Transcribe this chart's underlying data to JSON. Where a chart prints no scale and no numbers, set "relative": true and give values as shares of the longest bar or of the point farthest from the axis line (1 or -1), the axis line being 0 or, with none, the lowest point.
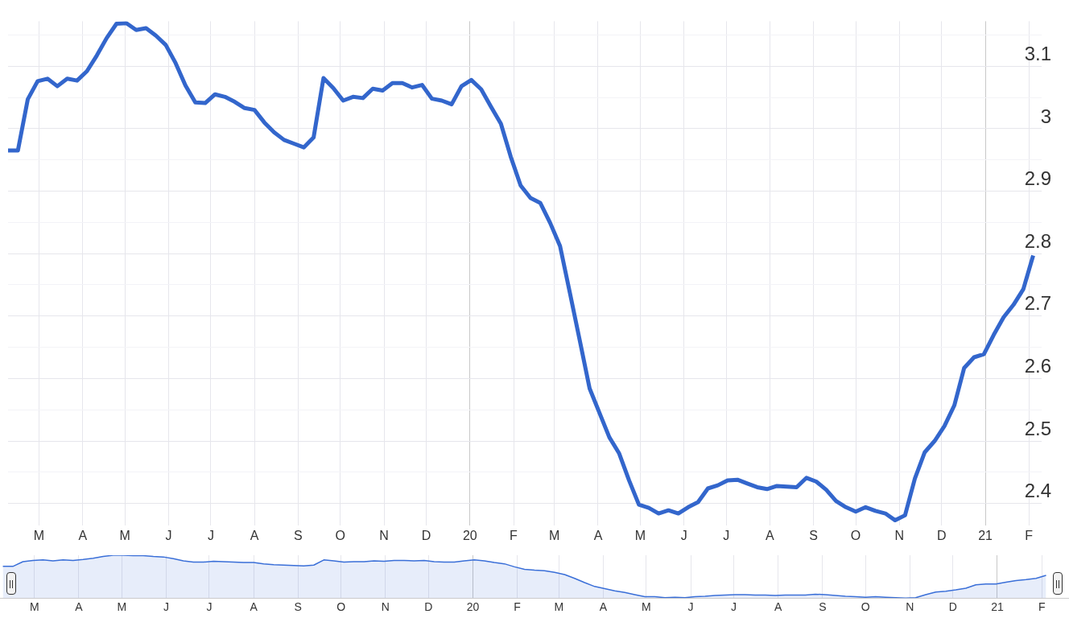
{
  "chart_data": [
    {
      "type": "line",
      "color": "#3366cc",
      "marker": "none",
      "grid": true,
      "x": [
        "2019-02-07",
        "2019-02-14",
        "2019-02-21",
        "2019-02-28",
        "2019-03-07",
        "2019-03-14",
        "2019-03-21",
        "2019-03-28",
        "2019-04-04",
        "2019-04-11",
        "2019-04-18",
        "2019-04-25",
        "2019-05-02",
        "2019-05-09",
        "2019-05-16",
        "2019-05-23",
        "2019-05-30",
        "2019-06-06",
        "2019-06-13",
        "2019-06-20",
        "2019-06-27",
        "2019-07-04",
        "2019-07-11",
        "2019-07-18",
        "2019-07-25",
        "2019-08-01",
        "2019-08-08",
        "2019-08-15",
        "2019-08-22",
        "2019-08-29",
        "2019-09-05",
        "2019-09-12",
        "2019-09-19",
        "2019-09-26",
        "2019-10-03",
        "2019-10-10",
        "2019-10-17",
        "2019-10-24",
        "2019-10-31",
        "2019-11-07",
        "2019-11-14",
        "2019-11-21",
        "2019-11-28",
        "2019-12-05",
        "2019-12-12",
        "2019-12-19",
        "2019-12-26",
        "2020-01-02",
        "2020-01-09",
        "2020-01-16",
        "2020-01-23",
        "2020-01-30",
        "2020-02-06",
        "2020-02-13",
        "2020-02-20",
        "2020-02-27",
        "2020-03-05",
        "2020-03-12",
        "2020-03-19",
        "2020-03-26",
        "2020-04-02",
        "2020-04-09",
        "2020-04-16",
        "2020-04-23",
        "2020-04-30",
        "2020-05-07",
        "2020-05-14",
        "2020-05-21",
        "2020-05-28",
        "2020-06-04",
        "2020-06-11",
        "2020-06-18",
        "2020-06-25",
        "2020-07-02",
        "2020-07-09",
        "2020-07-16",
        "2020-07-23",
        "2020-07-30",
        "2020-08-06",
        "2020-08-13",
        "2020-08-20",
        "2020-08-27",
        "2020-09-03",
        "2020-09-10",
        "2020-09-17",
        "2020-09-24",
        "2020-10-01",
        "2020-10-08",
        "2020-10-15",
        "2020-10-22",
        "2020-10-29",
        "2020-11-05",
        "2020-11-12",
        "2020-11-19",
        "2020-11-26",
        "2020-12-03",
        "2020-12-10",
        "2020-12-17",
        "2020-12-24",
        "2020-12-31",
        "2021-01-07",
        "2021-01-14",
        "2021-01-21",
        "2021-01-28",
        "2021-02-04"
      ],
      "values": [
        2.965,
        2.965,
        3.047,
        3.076,
        3.08,
        3.068,
        3.08,
        3.077,
        3.092,
        3.117,
        3.145,
        3.168,
        3.169,
        3.158,
        3.161,
        3.149,
        3.134,
        3.105,
        3.069,
        3.042,
        3.041,
        3.055,
        3.051,
        3.043,
        3.033,
        3.03,
        3.01,
        2.994,
        2.982,
        2.976,
        2.97,
        2.986,
        3.081,
        3.065,
        3.045,
        3.051,
        3.049,
        3.064,
        3.061,
        3.073,
        3.073,
        3.066,
        3.07,
        3.048,
        3.045,
        3.039,
        3.068,
        3.078,
        3.063,
        3.035,
        3.008,
        2.955,
        2.909,
        2.889,
        2.881,
        2.849,
        2.812,
        2.737,
        2.661,
        2.584,
        2.545,
        2.506,
        2.48,
        2.437,
        2.398,
        2.393,
        2.384,
        2.389,
        2.384,
        2.394,
        2.402,
        2.424,
        2.429,
        2.437,
        2.438,
        2.432,
        2.426,
        2.423,
        2.428,
        2.427,
        2.426,
        2.441,
        2.435,
        2.422,
        2.404,
        2.394,
        2.387,
        2.394,
        2.388,
        2.384,
        2.373,
        2.381,
        2.44,
        2.482,
        2.5,
        2.524,
        2.557,
        2.617,
        2.634,
        2.639,
        2.67,
        2.698,
        2.718,
        2.743,
        2.797
      ],
      "xlim": [
        "2019-02-07",
        "2021-02-10"
      ],
      "ylim": [
        2.365,
        3.172
      ],
      "xticks": [
        {
          "value": "2019-03",
          "label": "M"
        },
        {
          "value": "2019-04",
          "label": "A"
        },
        {
          "value": "2019-05",
          "label": "M"
        },
        {
          "value": "2019-06",
          "label": "J"
        },
        {
          "value": "2019-07",
          "label": "J"
        },
        {
          "value": "2019-08",
          "label": "A"
        },
        {
          "value": "2019-09",
          "label": "S"
        },
        {
          "value": "2019-10",
          "label": "O"
        },
        {
          "value": "2019-11",
          "label": "N"
        },
        {
          "value": "2019-12",
          "label": "D"
        },
        {
          "value": "2020-01",
          "label": "20"
        },
        {
          "value": "2020-02",
          "label": "F"
        },
        {
          "value": "2020-03",
          "label": "M"
        },
        {
          "value": "2020-04",
          "label": "A"
        },
        {
          "value": "2020-05",
          "label": "M"
        },
        {
          "value": "2020-06",
          "label": "J"
        },
        {
          "value": "2020-07",
          "label": "J"
        },
        {
          "value": "2020-08",
          "label": "A"
        },
        {
          "value": "2020-09",
          "label": "S"
        },
        {
          "value": "2020-10",
          "label": "O"
        },
        {
          "value": "2020-11",
          "label": "N"
        },
        {
          "value": "2020-12",
          "label": "D"
        },
        {
          "value": "2021-01",
          "label": "21"
        },
        {
          "value": "2021-02",
          "label": "F"
        }
      ],
      "yticks": [
        2.4,
        {
          "value": 2.45,
          "label": null
        },
        2.5,
        {
          "value": 2.55,
          "label": null
        },
        2.6,
        {
          "value": 2.65,
          "label": null
        },
        2.7,
        {
          "value": 2.75,
          "label": null
        },
        2.8,
        {
          "value": 2.85,
          "label": null
        },
        2.9,
        {
          "value": 2.95,
          "label": null
        },
        3,
        {
          "value": 3.05,
          "label": null
        },
        3.1,
        {
          "value": 3.15,
          "label": null
        }
      ]
    },
    {
      "type": "area",
      "color": "#3a6fd8",
      "marker": "none",
      "grid": "x",
      "tick_labels": "x",
      "relative": true,
      "x": [
        "2019-02-07",
        "2019-02-14",
        "2019-02-21",
        "2019-02-28",
        "2019-03-07",
        "2019-03-14",
        "2019-03-21",
        "2019-03-28",
        "2019-04-04",
        "2019-04-11",
        "2019-04-18",
        "2019-04-25",
        "2019-05-02",
        "2019-05-09",
        "2019-05-16",
        "2019-05-23",
        "2019-05-30",
        "2019-06-06",
        "2019-06-13",
        "2019-06-20",
        "2019-06-27",
        "2019-07-04",
        "2019-07-11",
        "2019-07-18",
        "2019-07-25",
        "2019-08-01",
        "2019-08-08",
        "2019-08-15",
        "2019-08-22",
        "2019-08-29",
        "2019-09-05",
        "2019-09-12",
        "2019-09-19",
        "2019-09-26",
        "2019-10-03",
        "2019-10-10",
        "2019-10-17",
        "2019-10-24",
        "2019-10-31",
        "2019-11-07",
        "2019-11-14",
        "2019-11-21",
        "2019-11-28",
        "2019-12-05",
        "2019-12-12",
        "2019-12-19",
        "2019-12-26",
        "2020-01-02",
        "2020-01-09",
        "2020-01-16",
        "2020-01-23",
        "2020-01-30",
        "2020-02-06",
        "2020-02-13",
        "2020-02-20",
        "2020-02-27",
        "2020-03-05",
        "2020-03-12",
        "2020-03-19",
        "2020-03-26",
        "2020-04-02",
        "2020-04-09",
        "2020-04-16",
        "2020-04-23",
        "2020-04-30",
        "2020-05-07",
        "2020-05-14",
        "2020-05-21",
        "2020-05-28",
        "2020-06-04",
        "2020-06-11",
        "2020-06-18",
        "2020-06-25",
        "2020-07-02",
        "2020-07-09",
        "2020-07-16",
        "2020-07-23",
        "2020-07-30",
        "2020-08-06",
        "2020-08-13",
        "2020-08-20",
        "2020-08-27",
        "2020-09-03",
        "2020-09-10",
        "2020-09-17",
        "2020-09-24",
        "2020-10-01",
        "2020-10-08",
        "2020-10-15",
        "2020-10-22",
        "2020-10-29",
        "2020-11-05",
        "2020-11-12",
        "2020-11-19",
        "2020-11-26",
        "2020-12-03",
        "2020-12-10",
        "2020-12-17",
        "2020-12-24",
        "2020-12-31",
        "2021-01-07",
        "2021-01-14",
        "2021-01-21",
        "2021-01-28",
        "2021-02-04"
      ],
      "values": [
        0.74,
        0.74,
        0.85,
        0.88,
        0.89,
        0.87,
        0.89,
        0.88,
        0.9,
        0.93,
        0.97,
        1,
        1,
        0.99,
        0.99,
        0.97,
        0.96,
        0.92,
        0.87,
        0.84,
        0.84,
        0.86,
        0.85,
        0.84,
        0.83,
        0.83,
        0.8,
        0.78,
        0.77,
        0.76,
        0.75,
        0.77,
        0.89,
        0.87,
        0.84,
        0.85,
        0.85,
        0.87,
        0.86,
        0.88,
        0.88,
        0.87,
        0.88,
        0.85,
        0.84,
        0.84,
        0.87,
        0.89,
        0.87,
        0.83,
        0.8,
        0.73,
        0.67,
        0.65,
        0.64,
        0.6,
        0.55,
        0.46,
        0.36,
        0.27,
        0.22,
        0.17,
        0.13,
        0.08,
        0.03,
        0.03,
        0.01,
        0.02,
        0.01,
        0.03,
        0.04,
        0.06,
        0.07,
        0.08,
        0.08,
        0.07,
        0.07,
        0.06,
        0.07,
        0.07,
        0.07,
        0.09,
        0.08,
        0.06,
        0.04,
        0.03,
        0.02,
        0.03,
        0.02,
        0.01,
        0,
        0.01,
        0.08,
        0.14,
        0.16,
        0.19,
        0.23,
        0.31,
        0.33,
        0.33,
        0.37,
        0.41,
        0.43,
        0.46,
        0.53
      ],
      "xlim": [
        "2019-02-05",
        "2021-02-20"
      ],
      "xticks": [
        {
          "value": "2019-03",
          "label": "M"
        },
        {
          "value": "2019-04",
          "label": "A"
        },
        {
          "value": "2019-05",
          "label": "M"
        },
        {
          "value": "2019-06",
          "label": "J"
        },
        {
          "value": "2019-07",
          "label": "J"
        },
        {
          "value": "2019-08",
          "label": "A"
        },
        {
          "value": "2019-09",
          "label": "S"
        },
        {
          "value": "2019-10",
          "label": "O"
        },
        {
          "value": "2019-11",
          "label": "N"
        },
        {
          "value": "2019-12",
          "label": "D"
        },
        {
          "value": "2020-01",
          "label": "20"
        },
        {
          "value": "2020-02",
          "label": "F"
        },
        {
          "value": "2020-03",
          "label": "M"
        },
        {
          "value": "2020-04",
          "label": "A"
        },
        {
          "value": "2020-05",
          "label": "M"
        },
        {
          "value": "2020-06",
          "label": "J"
        },
        {
          "value": "2020-07",
          "label": "J"
        },
        {
          "value": "2020-08",
          "label": "A"
        },
        {
          "value": "2020-09",
          "label": "S"
        },
        {
          "value": "2020-10",
          "label": "O"
        },
        {
          "value": "2020-11",
          "label": "N"
        },
        {
          "value": "2020-12",
          "label": "D"
        },
        {
          "value": "2021-01",
          "label": "21"
        },
        {
          "value": "2021-02",
          "label": "F"
        }
      ]
    }
  ]
}
